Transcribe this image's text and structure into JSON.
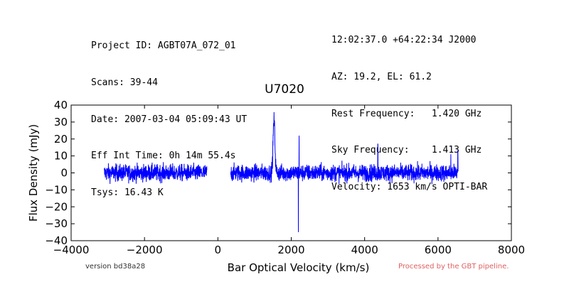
{
  "header": {
    "left_lines": [
      "Project ID: AGBT07A_072_01",
      "Scans: 39-44",
      "Date: 2007-03-04 05:09:43 UT",
      "Eff Int Time: 0h 14m 55.4s",
      "Tsys: 16.43 K"
    ],
    "right_lines": [
      "12:02:37.0 +64:22:34 J2000",
      "AZ: 19.2, EL: 61.2",
      "Rest Frequency:   1.420 GHz",
      "Sky Frequency:    1.413 GHz",
      "Velocity: 1653 km/s OPTI-BAR"
    ]
  },
  "footer": {
    "version": "version bd38a28",
    "pipeline": "Processed by the GBT pipeline."
  },
  "colors": {
    "line": "#0000ff",
    "pipeline_text": "#e06060"
  },
  "chart_data": {
    "type": "line",
    "title": "U7020",
    "xlabel": "Bar Optical Velocity (km/s)",
    "ylabel": "Flux Density (mJy)",
    "xlim": [
      -4000,
      8000
    ],
    "ylim": [
      -40,
      40
    ],
    "x_ticks": [
      -4000,
      -2000,
      0,
      2000,
      4000,
      6000,
      8000
    ],
    "y_ticks": [
      -40,
      -30,
      -20,
      -10,
      0,
      10,
      20,
      30,
      40
    ],
    "x_tick_labels": [
      "−4000",
      "−2000",
      "0",
      "2000",
      "4000",
      "6000",
      "8000"
    ],
    "y_tick_labels": [
      "−40",
      "−30",
      "−20",
      "−10",
      "0",
      "10",
      "20",
      "30",
      "40"
    ],
    "grid": false,
    "segments": [
      {
        "x_start": -3100,
        "x_end": -300,
        "noise_rms": 2.5
      },
      {
        "x_start": 350,
        "x_end": 6550,
        "noise_rms": 2.5
      }
    ],
    "features": [
      {
        "x": 1530,
        "peak": 31,
        "width": 50,
        "kind": "emission-line"
      },
      {
        "x": 2195,
        "peak": -35,
        "kind": "spike"
      },
      {
        "x": 2215,
        "peak": 22,
        "kind": "spike"
      },
      {
        "x": 4360,
        "peak": 17,
        "kind": "spike"
      },
      {
        "x": 6350,
        "peak": 11,
        "kind": "spike"
      },
      {
        "x": 6540,
        "peak": 13,
        "kind": "spike"
      }
    ]
  }
}
